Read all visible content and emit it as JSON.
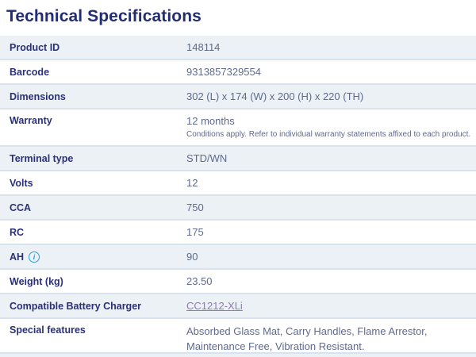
{
  "page": {
    "title": "Technical Specifications"
  },
  "colors": {
    "title_navy": "#222d72",
    "label_navy": "#2b3179",
    "value_gray": "#5f6a8e",
    "row_alt_bg": "#ecf1f6",
    "row_divider": "#d7e4f0",
    "link_purple": "#8f7ab8",
    "info_icon_blue": "#2e9fd6"
  },
  "icons": {
    "info_glyph": "i"
  },
  "table": {
    "rows": [
      {
        "label": "Product ID",
        "value": "148114"
      },
      {
        "label": "Barcode",
        "value": "9313857329554"
      },
      {
        "label": "Dimensions",
        "value": "302 (L) x 174 (W) x 200 (H) x 220 (TH)"
      },
      {
        "label": "Warranty",
        "value": "12 months",
        "note": "Conditions apply. Refer to individual warranty statements affixed to each product."
      },
      {
        "label": "Terminal type",
        "value": "STD/WN"
      },
      {
        "label": "Volts",
        "value": "12"
      },
      {
        "label": "CCA",
        "value": "750"
      },
      {
        "label": "RC",
        "value": "175"
      },
      {
        "label": "AH",
        "value": "90",
        "icon": "info-icon"
      },
      {
        "label": "Weight (kg)",
        "value": "23.50"
      },
      {
        "label": "Compatible Battery Charger",
        "value": "CC1212-XLi",
        "link": true
      },
      {
        "label": "Special features",
        "value": "Absorbed Glass Mat, Carry Handles, Flame Arrestor, Maintenance Free, Vibration Resistant."
      }
    ]
  }
}
